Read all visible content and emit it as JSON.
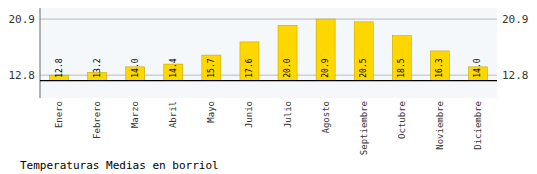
{
  "chart_data": {
    "type": "bar",
    "title": "Temperaturas Medias en borriol",
    "categories": [
      "Enero",
      "Febrero",
      "Marzo",
      "Abril",
      "Mayo",
      "Junio",
      "Julio",
      "Agosto",
      "Septiembre",
      "Octubre",
      "Noviembre",
      "Diciembre"
    ],
    "values": [
      12.8,
      13.2,
      14.0,
      14.4,
      15.7,
      17.6,
      20.0,
      20.9,
      20.5,
      18.5,
      16.3,
      14.0
    ],
    "value_labels": [
      "12.8",
      "13.2",
      "14.0",
      "14.4",
      "15.7",
      "17.6",
      "20.0",
      "20.9",
      "20.5",
      "18.5",
      "16.3",
      "14.0"
    ],
    "data_labels": true,
    "color": "#FFD700",
    "baseline": 12.0,
    "ylim": [
      9.5,
      22.5
    ],
    "yticks": [
      12.8,
      20.9
    ],
    "grid": true
  }
}
